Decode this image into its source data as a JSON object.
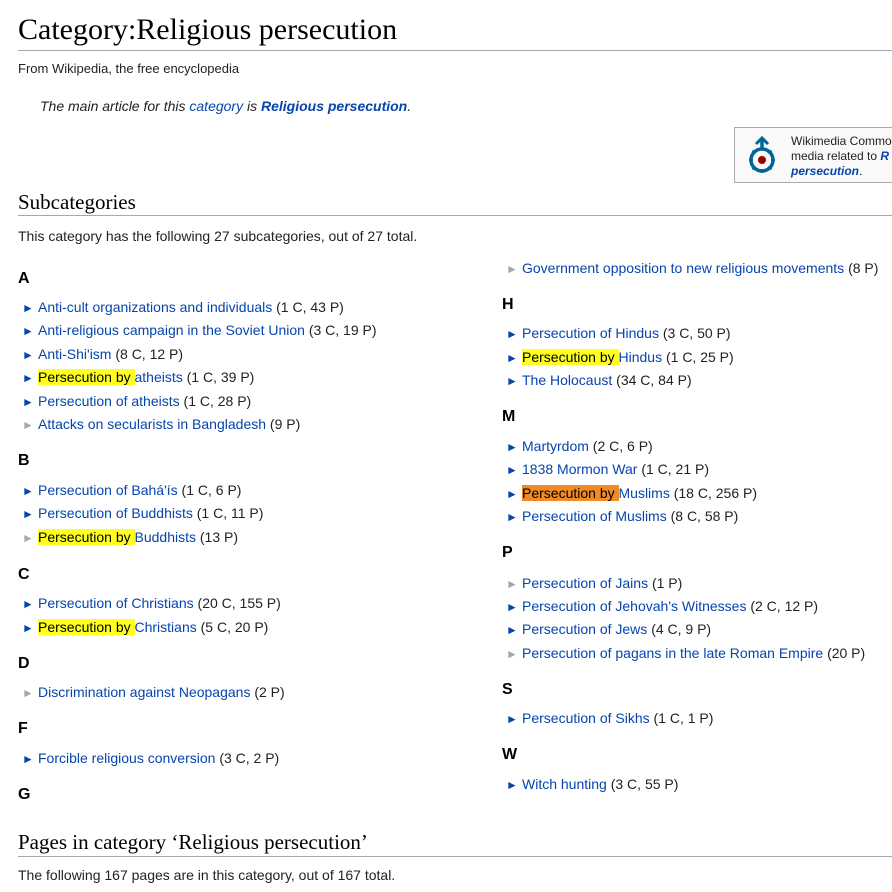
{
  "page": {
    "title": "Category:Religious persecution",
    "tagline": "From Wikipedia, the free encyclopedia",
    "hatnote": {
      "prefix": "The main article for this ",
      "category_link": "category",
      "middle": " is ",
      "article_link": "Religious persecution",
      "suffix": "."
    }
  },
  "commons": {
    "line1": "Wikimedia Commo",
    "line2_prefix": "media related to ",
    "line2_link": "R",
    "line3_link": "persecution",
    "line3_suffix": "."
  },
  "subcategories": {
    "heading": "Subcategories",
    "count_text": "This category has the following 27 subcategories, out of 27 total."
  },
  "groups": {
    "A": {
      "letter": "A",
      "items": [
        {
          "label": "Anti-cult organizations and individuals",
          "counts": "(1 C, 43 P)"
        },
        {
          "label": "Anti-religious campaign in the Soviet Union",
          "counts": "(3 C, 19 P)"
        },
        {
          "label": "Anti-Shi'ism",
          "counts": "(8 C, 12 P)"
        },
        {
          "label_hl": "Persecution by ",
          "label_rest": "atheists",
          "counts": "(1 C, 39 P)"
        },
        {
          "label": "Persecution of atheists",
          "counts": "(1 C, 28 P)"
        },
        {
          "label": "Attacks on secularists in Bangladesh",
          "counts": "(9 P)"
        }
      ]
    },
    "B": {
      "letter": "B",
      "items": [
        {
          "label": "Persecution of Bahá'ís",
          "counts": "(1 C, 6 P)"
        },
        {
          "label": "Persecution of Buddhists",
          "counts": "(1 C, 11 P)"
        },
        {
          "label_hl": "Persecution by ",
          "label_rest": "Buddhists",
          "counts": "(13 P)"
        }
      ]
    },
    "C": {
      "letter": "C",
      "items": [
        {
          "label": "Persecution of Christians",
          "counts": "(20 C, 155 P)"
        },
        {
          "label_hl": "Persecution by ",
          "label_rest": "Christians",
          "counts": "(5 C, 20 P)"
        }
      ]
    },
    "D": {
      "letter": "D",
      "items": [
        {
          "label": "Discrimination against Neopagans",
          "counts": "(2 P)"
        }
      ]
    },
    "F": {
      "letter": "F",
      "items": [
        {
          "label": "Forcible religious conversion",
          "counts": "(3 C, 2 P)"
        }
      ]
    },
    "G": {
      "letter": "G",
      "items": [
        {
          "label": "Government opposition to new religious movements",
          "counts": "(8 P)"
        }
      ]
    },
    "H": {
      "letter": "H",
      "items": [
        {
          "label": "Persecution of Hindus",
          "counts": "(3 C, 50 P)"
        },
        {
          "label_hl": "Persecution by ",
          "label_rest": "Hindus",
          "counts": "(1 C, 25 P)"
        },
        {
          "label": "The Holocaust",
          "counts": "(34 C, 84 P)"
        }
      ]
    },
    "M": {
      "letter": "M",
      "items": [
        {
          "label": "Martyrdom",
          "counts": "(2 C, 6 P)"
        },
        {
          "label": "1838 Mormon War",
          "counts": "(1 C, 21 P)"
        },
        {
          "label_hl": "Persecution by ",
          "label_rest": "Muslims",
          "counts": "(18 C, 256 P)"
        },
        {
          "label": "Persecution of Muslims",
          "counts": "(8 C, 58 P)"
        }
      ]
    },
    "P": {
      "letter": "P",
      "items": [
        {
          "label": "Persecution of Jains",
          "counts": "(1 P)"
        },
        {
          "label": "Persecution of Jehovah's Witnesses",
          "counts": "(2 C, 12 P)"
        },
        {
          "label": "Persecution of Jews",
          "counts": "(4 C, 9 P)"
        },
        {
          "label": "Persecution of pagans in the late Roman Empire",
          "counts": "(20 P)"
        }
      ]
    },
    "S": {
      "letter": "S",
      "items": [
        {
          "label": "Persecution of Sikhs",
          "counts": "(1 C, 1 P)"
        }
      ]
    },
    "W": {
      "letter": "W",
      "items": [
        {
          "label": "Witch hunting",
          "counts": "(3 C, 55 P)"
        }
      ]
    }
  },
  "pages_section": {
    "heading": "Pages in category ‘Religious persecution’",
    "count_text": "The following 167 pages are in this category, out of 167 total."
  },
  "arrow_glyph": "►",
  "colors": {
    "link": "#0645ad",
    "highlight_yellow": "#fffe1e",
    "highlight_orange": "#f08a24",
    "empty_arrow": "#a2a9b1"
  }
}
